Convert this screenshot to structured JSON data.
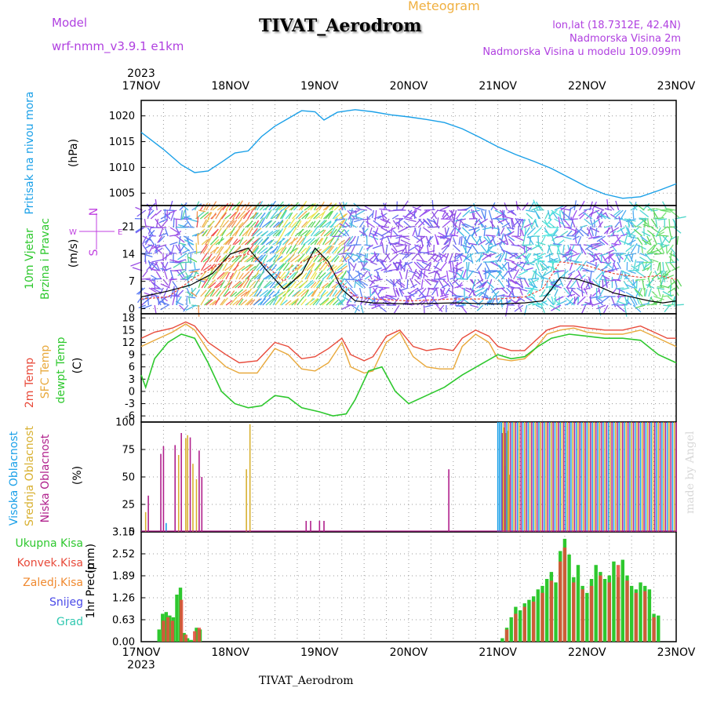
{
  "header": {
    "title": "TIVAT_Aerodrom",
    "meteogram": "Meteogram",
    "model_label": "Model",
    "model_name": "wrf-nmm_v3.9.1  e1km",
    "lonlat": "lon,lat (18.7312E, 42.4N)",
    "altitude": "Nadmorska Visina 2m",
    "model_altitude": "Nadmorska Visina u modelu 109.099m"
  },
  "footer": {
    "station": "TIVAT_Aerodrom",
    "credit": "made by Angel"
  },
  "x_axis": {
    "year": "2023",
    "labels": [
      "17NOV",
      "18NOV",
      "19NOV",
      "20NOV",
      "21NOV",
      "22NOV",
      "23NOV"
    ]
  },
  "colors": {
    "pressure": "#1aa0e8",
    "temp2m": "#e84a3a",
    "sfctemp": "#e8a83a",
    "dewpt": "#2ec82e",
    "visoka": "#1aa0e8",
    "srednja": "#d8b030",
    "niska": "#b0208c",
    "total_precip": "#2ec82e",
    "conv_precip": "#e84a3a",
    "frozen": "#f08a30",
    "snow": "#4a4ae8",
    "graupel": "#30c8b0",
    "wind_speed": "#000000",
    "gust": "#e84a3a",
    "wind_legend": "#c040e0"
  },
  "chart_data": [
    {
      "type": "line",
      "panel": "pressure",
      "ylabel": "Pritisak na nivou mora",
      "unit": "(hPa)",
      "yticks": [
        1005,
        1010,
        1015,
        1020
      ],
      "ylim": [
        1002.6,
        1023.0
      ],
      "series": [
        {
          "name": "Pritisak na nivou mora",
          "x": [
            0,
            0.25,
            0.45,
            0.6,
            0.75,
            0.9,
            1.05,
            1.2,
            1.35,
            1.5,
            1.65,
            1.8,
            1.95,
            2.05,
            2.2,
            2.4,
            2.6,
            2.8,
            3.0,
            3.2,
            3.4,
            3.6,
            3.8,
            4.0,
            4.2,
            4.4,
            4.6,
            4.8,
            5.0,
            5.2,
            5.4,
            5.6,
            5.8,
            6.0
          ],
          "y": [
            1016.8,
            1013.5,
            1010.5,
            1009.0,
            1009.3,
            1011.0,
            1012.8,
            1013.2,
            1016.0,
            1018.0,
            1019.5,
            1021.0,
            1020.8,
            1019.2,
            1020.7,
            1021.2,
            1020.8,
            1020.2,
            1019.8,
            1019.3,
            1018.7,
            1017.5,
            1015.8,
            1014.0,
            1012.5,
            1011.2,
            1009.8,
            1008.0,
            1006.2,
            1004.8,
            1004.0,
            1004.3,
            1005.5,
            1006.8
          ]
        }
      ]
    },
    {
      "type": "line",
      "panel": "wind",
      "ylabel": "10m Vjetar Brzina i Pravac",
      "unit": "(m/s)",
      "yticks": [
        0,
        7,
        14,
        21
      ],
      "ylim": [
        -1.3,
        26.4
      ],
      "direction_legend": [
        "N",
        "W",
        "E",
        "S"
      ],
      "series": [
        {
          "name": "Brzina",
          "x": [
            0,
            0.3,
            0.55,
            0.8,
            1.0,
            1.2,
            1.4,
            1.6,
            1.8,
            1.95,
            2.1,
            2.25,
            2.4,
            2.6,
            3.0,
            3.5,
            4.0,
            4.3,
            4.5,
            4.7,
            4.9,
            5.1,
            5.3,
            5.5,
            5.7,
            5.85,
            6.0
          ],
          "y": [
            3,
            4.5,
            6,
            9,
            14,
            15.5,
            10,
            5,
            9,
            15.5,
            12,
            5,
            2,
            1.5,
            1.2,
            1.5,
            1.2,
            1.5,
            2,
            8,
            7.5,
            6,
            4,
            3,
            2,
            1.5,
            2
          ]
        },
        {
          "name": "Udar",
          "x": [
            0,
            0.3,
            0.6,
            1.0,
            1.2,
            1.4,
            1.6,
            1.8,
            2.0,
            2.2,
            2.4,
            2.6,
            3.0,
            3.5,
            4.0,
            4.3,
            4.5,
            4.7,
            5.0,
            5.3,
            5.6,
            5.8,
            6.0
          ],
          "y": [
            2.5,
            3,
            8,
            13,
            14,
            11,
            7,
            12,
            14,
            8,
            3,
            2.5,
            2,
            2.5,
            2.5,
            3,
            5,
            12,
            11,
            9,
            8,
            8.5,
            7.5
          ]
        }
      ]
    },
    {
      "type": "line",
      "panel": "temperature",
      "ylabel": "2m Temp / SFC Temp / dewpt Temp",
      "unit": "(C)",
      "yticks": [
        -6,
        -3,
        0,
        3,
        6,
        9,
        12,
        15,
        18
      ],
      "ylim": [
        -7.5,
        19.0
      ],
      "series": [
        {
          "name": "2m Temp",
          "x": [
            0,
            0.15,
            0.35,
            0.5,
            0.6,
            0.75,
            0.95,
            1.1,
            1.3,
            1.5,
            1.65,
            1.8,
            1.95,
            2.1,
            2.25,
            2.35,
            2.5,
            2.6,
            2.75,
            2.9,
            3.05,
            3.2,
            3.35,
            3.5,
            3.6,
            3.75,
            3.9,
            4.0,
            4.15,
            4.3,
            4.4,
            4.55,
            4.7,
            4.85,
            5.0,
            5.2,
            5.4,
            5.6,
            5.75,
            5.9,
            6.0
          ],
          "y": [
            13,
            14.5,
            15.5,
            17,
            16,
            12,
            9,
            7,
            7.5,
            12,
            11,
            8,
            8.5,
            10.5,
            13,
            9,
            7.5,
            8.5,
            13.5,
            15,
            11,
            10,
            10.5,
            10,
            13,
            15,
            13.5,
            11,
            10,
            10,
            12,
            15,
            16,
            16,
            15.5,
            15,
            15,
            16,
            14.5,
            13,
            13
          ]
        },
        {
          "name": "SFC Temp",
          "x": [
            0,
            0.15,
            0.35,
            0.5,
            0.6,
            0.75,
            0.95,
            1.1,
            1.3,
            1.5,
            1.65,
            1.8,
            1.95,
            2.1,
            2.25,
            2.35,
            2.5,
            2.6,
            2.75,
            2.9,
            3.05,
            3.2,
            3.35,
            3.5,
            3.6,
            3.75,
            3.9,
            4.0,
            4.15,
            4.3,
            4.4,
            4.55,
            4.7,
            4.85,
            5.0,
            5.2,
            5.4,
            5.6,
            5.75,
            5.9,
            6.0
          ],
          "y": [
            11,
            12.5,
            14.5,
            16.5,
            15,
            10,
            6,
            4.5,
            4.5,
            10.5,
            9,
            5.5,
            5,
            7,
            12,
            6,
            4.5,
            5,
            12,
            14.5,
            8.5,
            6,
            5.5,
            5.5,
            11,
            14,
            12,
            8,
            7.5,
            8,
            10,
            14,
            15,
            15.5,
            14.5,
            14,
            14,
            15,
            13.5,
            12,
            11
          ]
        },
        {
          "name": "dewpt Temp",
          "x": [
            0,
            0.05,
            0.15,
            0.3,
            0.45,
            0.6,
            0.75,
            0.9,
            1.05,
            1.2,
            1.35,
            1.5,
            1.65,
            1.8,
            2.0,
            2.15,
            2.3,
            2.4,
            2.55,
            2.7,
            2.85,
            3.0,
            3.2,
            3.4,
            3.6,
            3.8,
            4.0,
            4.15,
            4.3,
            4.45,
            4.6,
            4.8,
            5.0,
            5.2,
            5.4,
            5.6,
            5.8,
            6.0
          ],
          "y": [
            4,
            1,
            8,
            12,
            14,
            13,
            7,
            0,
            -3,
            -4,
            -3.5,
            -1,
            -1.5,
            -4,
            -5,
            -6,
            -5.5,
            -2,
            5,
            6,
            0,
            -3,
            -1,
            1,
            4,
            6.5,
            9,
            8,
            8.5,
            11,
            13,
            14,
            13.5,
            13,
            13,
            12.5,
            9,
            7
          ]
        }
      ]
    },
    {
      "type": "bar",
      "panel": "cloud",
      "ylabel": "Visoka / Srednja / Niska Oblacnost",
      "unit": "(%)",
      "yticks": [
        0,
        25,
        50,
        75,
        100
      ],
      "ylim": [
        0,
        100
      ],
      "series": [
        {
          "name": "Visoka Oblacnost",
          "x": [
            0.28,
            4.0,
            4.02,
            4.04
          ],
          "values": [
            8,
            100,
            100,
            100
          ]
        },
        {
          "name": "Srednja Oblacnost",
          "x": [
            0.05,
            0.42,
            0.5,
            0.52,
            0.58,
            0.62,
            1.18,
            1.22,
            4.07,
            4.09,
            4.11,
            4.13
          ],
          "values": [
            18,
            70,
            85,
            88,
            62,
            48,
            57,
            98,
            95,
            90,
            92,
            52
          ]
        },
        {
          "name": "Niska Oblacnost",
          "x": [
            0.08,
            0.22,
            0.25,
            0.38,
            0.45,
            0.55,
            0.65,
            0.68,
            1.85,
            1.9,
            2.0,
            2.05,
            3.45,
            4.05,
            4.08
          ],
          "values": [
            33,
            71,
            78,
            79,
            90,
            86,
            74,
            50,
            10,
            10,
            10,
            10,
            57,
            90,
            60
          ]
        }
      ],
      "dense_range": [
        4.0,
        6.0
      ]
    },
    {
      "type": "bar",
      "panel": "precipitation",
      "ylabel": "1hr Precip",
      "unit": "(mm)",
      "yticks": [
        0,
        0.63,
        1.26,
        1.89,
        2.52,
        3.15
      ],
      "ylim": [
        0,
        3.15
      ],
      "legend": [
        "Ukupna Kisa",
        "Konvek.Kisa",
        "Zaledj.Kisa",
        "Snijeg",
        "Grad"
      ],
      "series": [
        {
          "name": "Ukupna Kisa",
          "x": [
            0.2,
            0.24,
            0.28,
            0.32,
            0.36,
            0.4,
            0.44,
            0.48,
            0.52,
            0.56,
            0.62,
            0.66,
            4.05,
            4.1,
            4.15,
            4.2,
            4.25,
            4.3,
            4.35,
            4.4,
            4.45,
            4.5,
            4.55,
            4.6,
            4.65,
            4.7,
            4.75,
            4.8,
            4.85,
            4.9,
            4.95,
            5.0,
            5.05,
            5.1,
            5.15,
            5.2,
            5.25,
            5.3,
            5.35,
            5.4,
            5.45,
            5.5,
            5.55,
            5.6,
            5.65,
            5.7,
            5.75,
            5.8
          ],
          "values": [
            0.35,
            0.8,
            0.85,
            0.75,
            0.7,
            1.35,
            1.55,
            0.25,
            0.1,
            0.05,
            0.4,
            0.35,
            0.1,
            0.4,
            0.7,
            1.0,
            0.9,
            1.1,
            1.2,
            1.3,
            1.5,
            1.6,
            1.8,
            2.0,
            1.7,
            2.6,
            2.95,
            2.5,
            1.85,
            2.2,
            1.6,
            1.4,
            1.8,
            2.2,
            2.0,
            1.8,
            1.9,
            2.3,
            1.85,
            2.35,
            1.9,
            1.6,
            1.5,
            1.7,
            1.6,
            1.5,
            0.8,
            0.75
          ]
        },
        {
          "name": "Konvek.Kisa",
          "x": [
            0.25,
            0.3,
            0.35,
            0.45,
            0.5,
            0.6,
            0.65,
            4.1,
            4.2,
            4.3,
            4.4,
            4.5,
            4.6,
            4.7,
            4.75,
            4.85,
            4.95,
            5.05,
            5.15,
            5.25,
            5.35,
            5.45,
            5.55,
            5.65,
            5.75
          ],
          "values": [
            0.6,
            0.7,
            0.6,
            1.2,
            0.2,
            0.3,
            0.4,
            0.35,
            0.8,
            1.0,
            1.15,
            1.4,
            1.75,
            2.3,
            2.7,
            1.7,
            1.5,
            1.6,
            1.9,
            1.7,
            2.2,
            1.75,
            1.4,
            1.45,
            0.7
          ]
        }
      ]
    }
  ]
}
